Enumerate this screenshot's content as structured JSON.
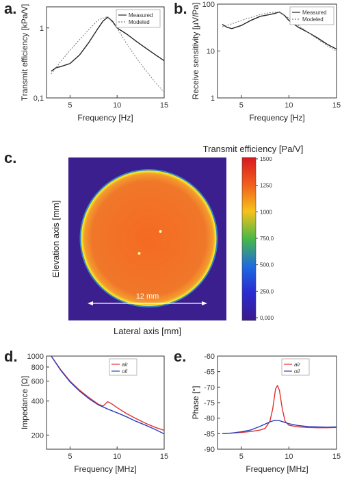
{
  "panels": {
    "a": {
      "letter": "a."
    },
    "b": {
      "letter": "b."
    },
    "c": {
      "letter": "c."
    },
    "d": {
      "letter": "d."
    },
    "e": {
      "letter": "e."
    }
  },
  "chart_data": [
    {
      "id": "a",
      "type": "line",
      "xlabel": "Frequency [Hz]",
      "ylabel": "Transmit efficiency [kPa/V]",
      "xlim": [
        2.5,
        15
      ],
      "ylim": [
        0.1,
        2
      ],
      "yscale": "log",
      "xticks": [
        5,
        10,
        15
      ],
      "yticks": [
        {
          "v": 0.1,
          "label": "0,1"
        },
        {
          "v": 1,
          "label": "1"
        }
      ],
      "legend": "top-right",
      "series": [
        {
          "name": "Measured",
          "color": "#222222",
          "dash": false,
          "x": [
            3,
            3.5,
            4,
            5,
            6,
            7,
            8,
            8.5,
            9,
            9.5,
            10,
            11,
            12,
            13,
            14,
            15
          ],
          "y": [
            0.24,
            0.27,
            0.28,
            0.31,
            0.41,
            0.62,
            1.0,
            1.25,
            1.42,
            1.25,
            1.0,
            0.82,
            0.65,
            0.52,
            0.42,
            0.34
          ]
        },
        {
          "name": "Modeled",
          "color": "#777777",
          "dash": true,
          "x": [
            3,
            4,
            5,
            6,
            7,
            8,
            9,
            10,
            11,
            12,
            13,
            14,
            15
          ],
          "y": [
            0.22,
            0.33,
            0.48,
            0.68,
            0.95,
            1.3,
            1.45,
            1.0,
            0.6,
            0.38,
            0.25,
            0.17,
            0.12
          ]
        }
      ]
    },
    {
      "id": "b",
      "type": "line",
      "xlabel": "Frequency [Hz]",
      "ylabel": "Receive sensitivity [µV/Pa]",
      "xlim": [
        2.5,
        15
      ],
      "ylim": [
        1,
        100
      ],
      "yscale": "log",
      "xticks": [
        5,
        10,
        15
      ],
      "yticks": [
        {
          "v": 1,
          "label": "1"
        },
        {
          "v": 10,
          "label": "10"
        },
        {
          "v": 100,
          "label": "100"
        }
      ],
      "legend": "top-right",
      "series": [
        {
          "name": "Measured",
          "color": "#222222",
          "dash": false,
          "x": [
            3,
            3.5,
            4,
            5,
            6,
            7,
            8,
            8.5,
            9,
            9.5,
            10,
            11,
            12,
            13,
            14,
            15
          ],
          "y": [
            37,
            32,
            30,
            35,
            45,
            55,
            60,
            63,
            68,
            58,
            45,
            32,
            25,
            19,
            14,
            11
          ]
        },
        {
          "name": "Modeled",
          "color": "#777777",
          "dash": true,
          "x": [
            3,
            4,
            5,
            6,
            7,
            8,
            9,
            10,
            11,
            12,
            13,
            14,
            15
          ],
          "y": [
            33,
            38,
            45,
            52,
            60,
            66,
            68,
            50,
            35,
            25,
            18,
            13,
            10
          ]
        }
      ]
    },
    {
      "id": "c",
      "type": "heatmap",
      "title": "Transmit efficiency [Pa/V]",
      "xlabel": "Lateral axis [mm]",
      "ylabel": "Elevation axis [mm]",
      "annotation": "12 mm",
      "colorbar_ticks": [
        "1500",
        "1250",
        "1000",
        "750,0",
        "500,0",
        "250,0",
        "0,000"
      ],
      "colorbar_range": [
        0,
        1500
      ],
      "colors": {
        "background": "#3b1f8f",
        "disk": "#f36b21",
        "rim": "#f4e425"
      }
    },
    {
      "id": "d",
      "type": "line",
      "xlabel": "Frequency [MHz]",
      "ylabel": "Impedance [Ω]",
      "xlim": [
        2.5,
        15
      ],
      "ylim": [
        150,
        1000
      ],
      "yscale": "log",
      "xticks": [
        5,
        10,
        15
      ],
      "yticks": [
        {
          "v": 200,
          "label": "200"
        },
        {
          "v": 400,
          "label": "400"
        },
        {
          "v": 600,
          "label": "600"
        },
        {
          "v": 800,
          "label": "800"
        },
        {
          "v": 1000,
          "label": "1000"
        }
      ],
      "legend": "top-right",
      "series": [
        {
          "name": "air",
          "color": "#e03030",
          "dash": false,
          "x": [
            3,
            4,
            5,
            6,
            7,
            8,
            8.5,
            9,
            9.5,
            10,
            11,
            12,
            13,
            14,
            15
          ],
          "y": [
            1000,
            760,
            600,
            500,
            430,
            375,
            360,
            395,
            375,
            350,
            310,
            280,
            255,
            235,
            220
          ]
        },
        {
          "name": "oil",
          "color": "#2a3fbf",
          "dash": false,
          "x": [
            3,
            4,
            5,
            6,
            7,
            8,
            9,
            10,
            11,
            12,
            13,
            14,
            15
          ],
          "y": [
            1000,
            750,
            590,
            490,
            420,
            370,
            340,
            315,
            290,
            265,
            245,
            225,
            205
          ]
        }
      ]
    },
    {
      "id": "e",
      "type": "line",
      "xlabel": "Frequency [MHz]",
      "ylabel": "Phase [°]",
      "xlim": [
        2.5,
        15
      ],
      "ylim": [
        -90,
        -60
      ],
      "xticks": [
        5,
        10,
        15
      ],
      "yticks": [
        {
          "v": -60,
          "label": "-60"
        },
        {
          "v": -65,
          "label": "-65"
        },
        {
          "v": -70,
          "label": "-70"
        },
        {
          "v": -75,
          "label": "-75"
        },
        {
          "v": -80,
          "label": "-80"
        },
        {
          "v": -85,
          "label": "-85"
        },
        {
          "v": -90,
          "label": "-90"
        }
      ],
      "legend": "top-right",
      "series": [
        {
          "name": "air",
          "color": "#e03030",
          "dash": false,
          "x": [
            3,
            4,
            5,
            6,
            7,
            7.5,
            8,
            8.3,
            8.6,
            8.8,
            9,
            9.3,
            9.6,
            10,
            11,
            12,
            13,
            14,
            15
          ],
          "y": [
            -85,
            -84.8,
            -84.6,
            -84.3,
            -83.8,
            -83.3,
            -81,
            -77,
            -70.5,
            -69.5,
            -71,
            -77,
            -81,
            -82.3,
            -82.8,
            -83,
            -83.1,
            -83.1,
            -83
          ]
        },
        {
          "name": "oil",
          "color": "#2a3fbf",
          "dash": false,
          "x": [
            3,
            4,
            5,
            6,
            7,
            8,
            8.5,
            9,
            9.5,
            10,
            11,
            12,
            13,
            14,
            15
          ],
          "y": [
            -85,
            -84.8,
            -84.4,
            -83.8,
            -82.6,
            -81.2,
            -80.7,
            -80.8,
            -81.3,
            -81.8,
            -82.4,
            -82.7,
            -82.8,
            -82.9,
            -82.8
          ]
        }
      ]
    }
  ]
}
